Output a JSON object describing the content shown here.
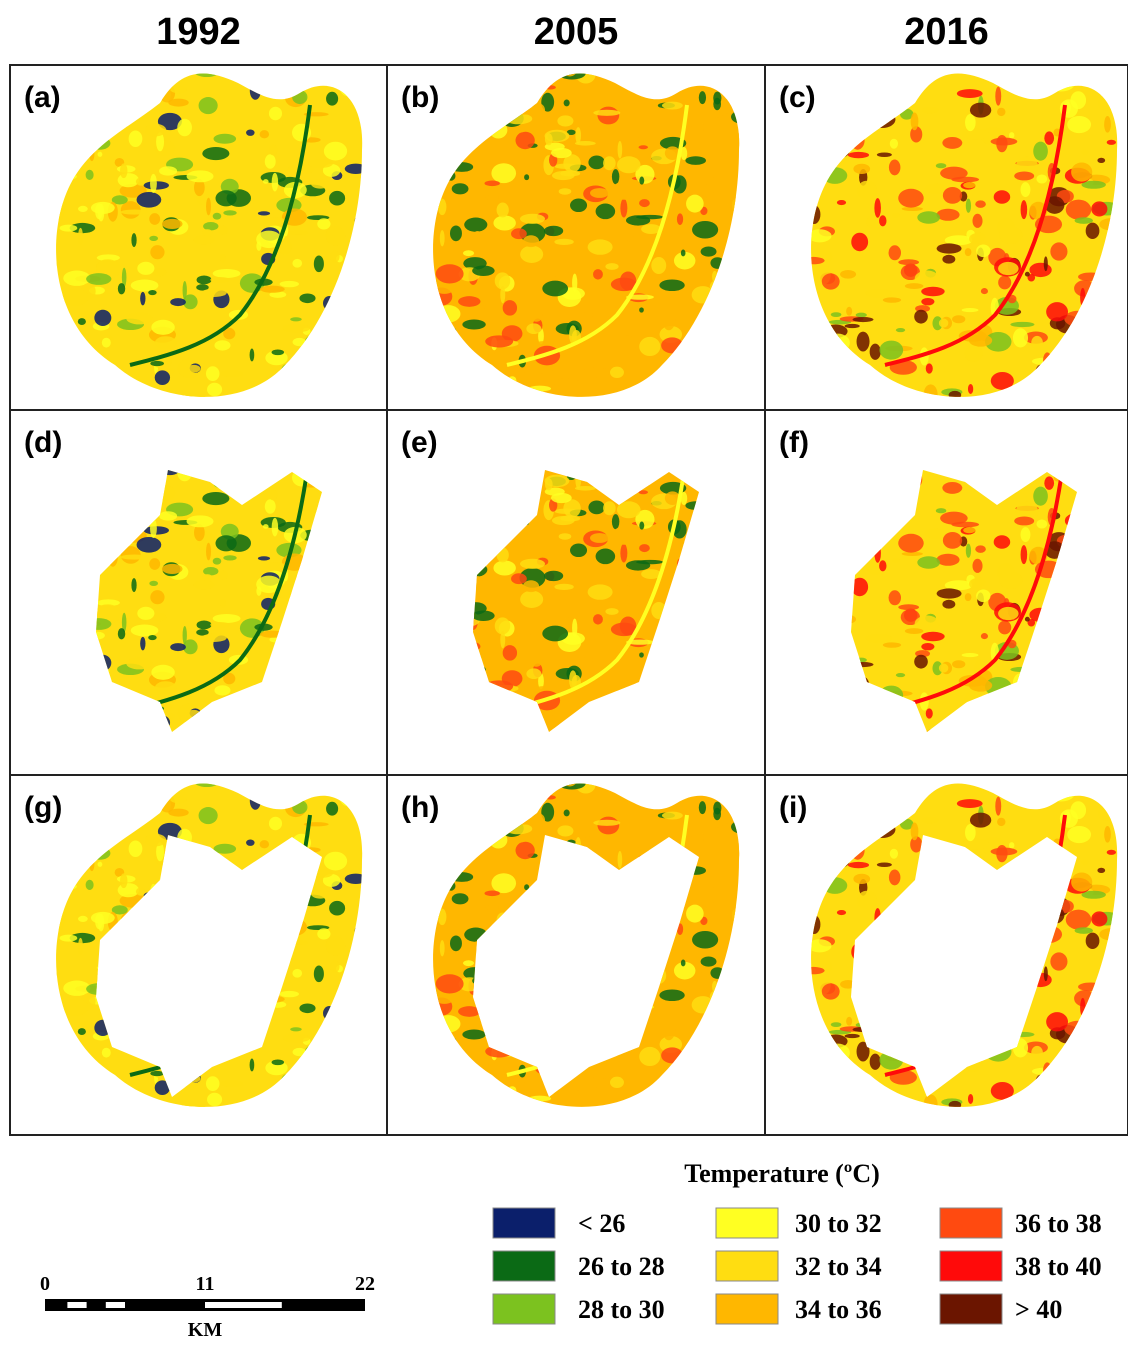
{
  "columns": [
    "1992",
    "2005",
    "2016"
  ],
  "panels": [
    "(a)",
    "(b)",
    "(c)",
    "(d)",
    "(e)",
    "(f)",
    "(g)",
    "(h)",
    "(i)"
  ],
  "legend": {
    "title": "Temperature (ºC)",
    "items": [
      {
        "label": "< 26",
        "color": "#0b1f6b"
      },
      {
        "label": "26 to 28",
        "color": "#0b6a15"
      },
      {
        "label": "28 to 30",
        "color": "#7cc21f"
      },
      {
        "label": "30 to 32",
        "color": "#ffff22"
      },
      {
        "label": "32 to 34",
        "color": "#ffdd11"
      },
      {
        "label": "34 to 36",
        "color": "#ffb700"
      },
      {
        "label": "36 to 38",
        "color": "#ff4a10"
      },
      {
        "label": "38 to 40",
        "color": "#ff0a0a"
      },
      {
        "label": "> 40",
        "color": "#6b1500"
      }
    ]
  },
  "scale_bar": {
    "ticks": [
      0,
      11,
      22
    ],
    "unit": "KM"
  }
}
